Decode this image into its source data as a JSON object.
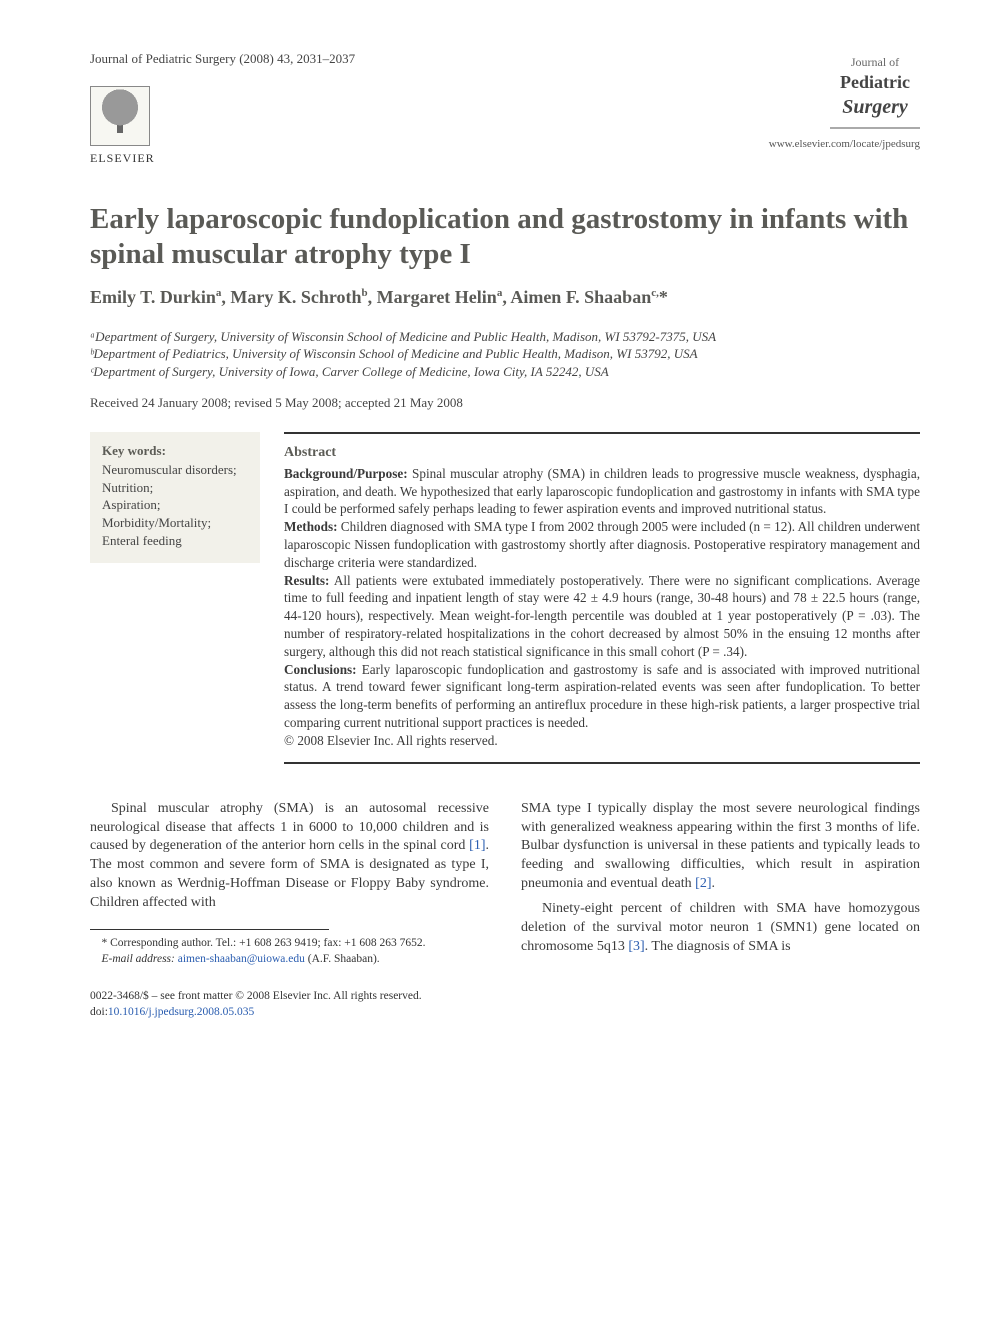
{
  "header": {
    "journal_citation": "Journal of Pediatric Surgery (2008) 43, 2031–2037",
    "publisher_name": "ELSEVIER",
    "journal_of": "Journal of",
    "journal_name1": "Pediatric",
    "journal_name2": "Surgery",
    "journal_url": "www.elsevier.com/locate/jpedsurg"
  },
  "title": "Early laparoscopic fundoplication and gastrostomy in infants with spinal muscular atrophy type I",
  "authors_html": "Emily T. Durkin<sup>a</sup>, Mary K. Schroth<sup>b</sup>, Margaret Helin<sup>a</sup>, Aimen F. Shaaban<sup>c,</sup>*",
  "affiliations": {
    "a": "ᵃDepartment of Surgery, University of Wisconsin School of Medicine and Public Health, Madison, WI 53792-7375, USA",
    "b": "ᵇDepartment of Pediatrics, University of Wisconsin School of Medicine and Public Health, Madison, WI 53792, USA",
    "c": "ᶜDepartment of Surgery, University of Iowa, Carver College of Medicine, Iowa City, IA 52242, USA"
  },
  "dates": "Received 24 January 2008; revised 5 May 2008; accepted 21 May 2008",
  "keywords": {
    "title": "Key words:",
    "items": "Neuromuscular disorders;\nNutrition;\nAspiration;\nMorbidity/Mortality;\nEnteral feeding"
  },
  "abstract": {
    "title": "Abstract",
    "background_label": "Background/Purpose:",
    "background": " Spinal muscular atrophy (SMA) in children leads to progressive muscle weakness, dysphagia, aspiration, and death. We hypothesized that early laparoscopic fundoplication and gastrostomy in infants with SMA type I could be performed safely perhaps leading to fewer aspiration events and improved nutritional status.",
    "methods_label": "Methods:",
    "methods": " Children diagnosed with SMA type I from 2002 through 2005 were included (n = 12). All children underwent laparoscopic Nissen fundoplication with gastrostomy shortly after diagnosis. Postoperative respiratory management and discharge criteria were standardized.",
    "results_label": "Results:",
    "results": " All patients were extubated immediately postoperatively. There were no significant complications. Average time to full feeding and inpatient length of stay were 42 ± 4.9 hours (range, 30-48 hours) and 78 ± 22.5 hours (range, 44-120 hours), respectively. Mean weight-for-length percentile was doubled at 1 year postoperatively (P = .03). The number of respiratory-related hospitalizations in the cohort decreased by almost 50% in the ensuing 12 months after surgery, although this did not reach statistical significance in this small cohort (P = .34).",
    "conclusions_label": "Conclusions:",
    "conclusions": " Early laparoscopic fundoplication and gastrostomy is safe and is associated with improved nutritional status. A trend toward fewer significant long-term aspiration-related events was seen after fundoplication. To better assess the long-term benefits of performing an antireflux procedure in these high-risk patients, a larger prospective trial comparing current nutritional support practices is needed.",
    "copyright": "© 2008 Elsevier Inc. All rights reserved."
  },
  "body": {
    "col1_p1a": "Spinal muscular atrophy (SMA) is an autosomal recessive neurological disease that affects 1 in 6000 to 10,000 children and is caused by degeneration of the anterior horn cells in the spinal cord ",
    "col1_cite1": "[1]",
    "col1_p1b": ". The most common and severe form of SMA is designated as type I, also known as Werdnig-Hoffman Disease or Floppy Baby syndrome. Children affected with",
    "col2_p1a": "SMA type I typically display the most severe neurological findings with generalized weakness appearing within the first 3 months of life. Bulbar dysfunction is universal in these patients and typically leads to feeding and swallowing difficulties, which result in aspiration pneumonia and eventual death ",
    "col2_cite2": "[2]",
    "col2_p1b": ".",
    "col2_p2a": "Ninety-eight percent of children with SMA have homozygous deletion of the survival motor neuron 1 (SMN1) gene located on chromosome 5q13 ",
    "col2_cite3": "[3]",
    "col2_p2b": ". The diagnosis of SMA is"
  },
  "footnote": {
    "corresponding": "* Corresponding author. Tel.: +1 608 263 9419; fax: +1 608 263 7652.",
    "email_label": "E-mail address: ",
    "email": "aimen-shaaban@uiowa.edu",
    "email_after": " (A.F. Shaaban)."
  },
  "footer": {
    "line1": "0022-3468/$ – see front matter © 2008 Elsevier Inc. All rights reserved.",
    "doi_label": "doi:",
    "doi": "10.1016/j.jpedsurg.2008.05.035"
  },
  "colors": {
    "text": "#3a3a3a",
    "heading": "#5a5a56",
    "link": "#2a5db0",
    "keywords_bg": "#f2f1ea",
    "rule": "#333333"
  }
}
